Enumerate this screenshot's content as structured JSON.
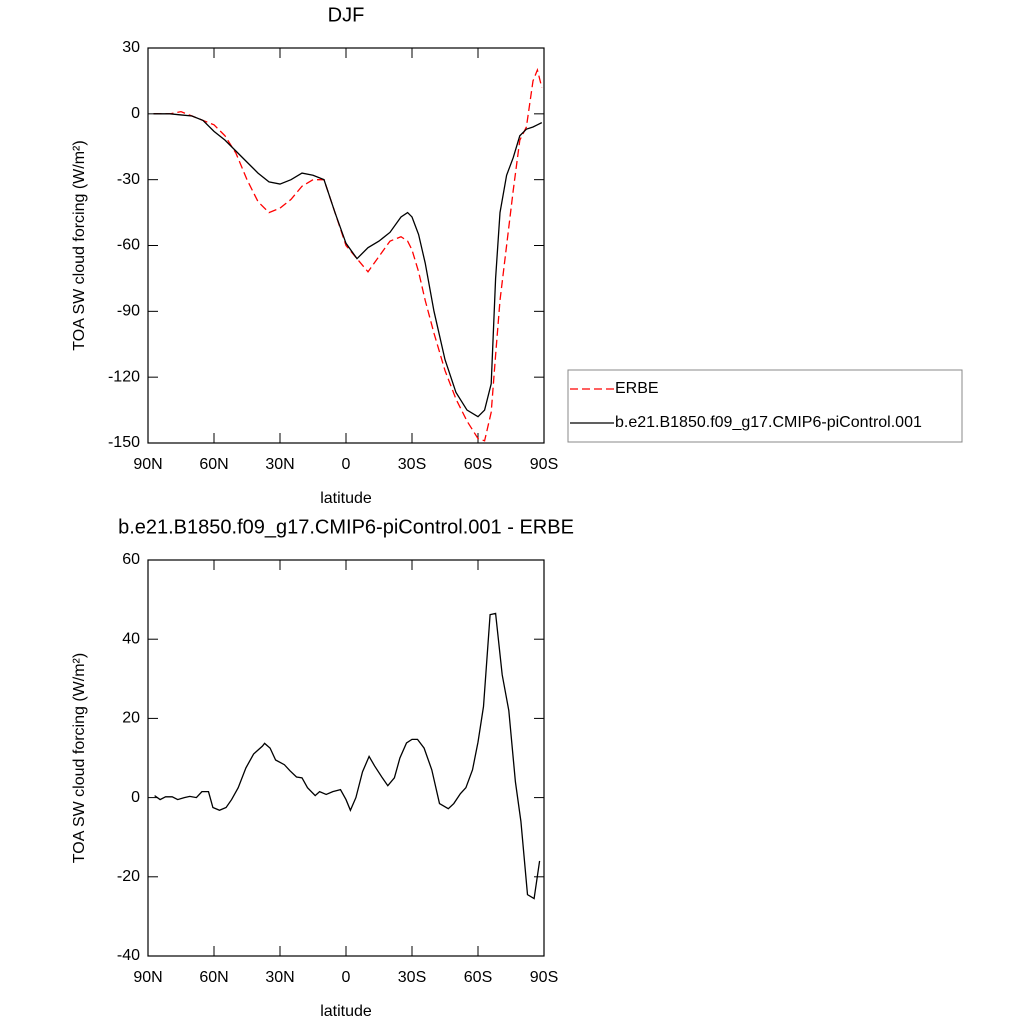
{
  "chart_data": [
    {
      "type": "line",
      "title": "DJF",
      "xlabel": "latitude",
      "ylabel": "TOA SW cloud forcing (W/m²)",
      "x": [
        87.5,
        80,
        75,
        70,
        65,
        60,
        55,
        50,
        45,
        40,
        35,
        30,
        25,
        20,
        15,
        10,
        5,
        0,
        -5,
        -10,
        -15,
        -20,
        -25,
        -28,
        -30,
        -33,
        -36,
        -40,
        -45,
        -50,
        -55,
        -60,
        -63,
        -66,
        -68,
        -70,
        -73,
        -76,
        -79,
        -82,
        -85,
        -87,
        -89
      ],
      "series": [
        {
          "name": "ERBE",
          "color": "#ff0000",
          "dash": "dashed",
          "values": [
            0,
            0,
            1,
            -1,
            -3,
            -5,
            -10,
            -18,
            -30,
            -40,
            -45,
            -43,
            -39,
            -33,
            -30,
            -30,
            -45,
            -60,
            -66,
            -72,
            -65,
            -58,
            -56,
            -58,
            -62,
            -72,
            -85,
            -100,
            -117,
            -130,
            -140,
            -148,
            -149,
            -136,
            -110,
            -85,
            -60,
            -35,
            -12,
            -6,
            15,
            20,
            12
          ]
        },
        {
          "name": "b.e21.B1850.f09_g17.CMIP6-piControl.001",
          "color": "#000000",
          "dash": "solid",
          "values": [
            0,
            0,
            -0.5,
            -1,
            -3,
            -8,
            -12,
            -17,
            -22,
            -27,
            -31,
            -32,
            -30,
            -27,
            -28,
            -30,
            -45,
            -59,
            -66,
            -61,
            -58,
            -54,
            -47,
            -45,
            -47,
            -55,
            -68,
            -90,
            -112,
            -127,
            -135,
            -138,
            -135,
            -123,
            -75,
            -45,
            -28,
            -20,
            -10,
            -7,
            -6,
            -5,
            -4
          ]
        }
      ],
      "xlim": [
        90,
        -90
      ],
      "xticks": [
        {
          "value": 90,
          "label": "90N"
        },
        {
          "value": 60,
          "label": "60N"
        },
        {
          "value": 30,
          "label": "30N"
        },
        0,
        {
          "value": -30,
          "label": "30S"
        },
        {
          "value": -60,
          "label": "60S"
        },
        {
          "value": -90,
          "label": "90S"
        }
      ],
      "ylim": [
        -150,
        30
      ],
      "yticks": [
        -150,
        -120,
        -90,
        -60,
        -30,
        0,
        30
      ],
      "legend": "right"
    },
    {
      "type": "line",
      "title": "b.e21.B1850.f09_g17.CMIP6-piControl.001 - ERBE",
      "xlabel": "latitude",
      "ylabel": "TOA SW cloud forcing (W/m²)",
      "x": [
        87,
        84.5,
        82,
        79,
        76.5,
        73.5,
        71,
        68,
        65.5,
        62.5,
        60.5,
        57.5,
        54.5,
        52,
        49,
        45.5,
        42,
        38,
        37,
        34.5,
        32,
        28,
        25.5,
        22.5,
        20,
        17.5,
        14,
        12,
        9,
        6,
        2.5,
        0,
        -2,
        -4.5,
        -7.5,
        -10.5,
        -13,
        -16.5,
        -19,
        -22,
        -24.5,
        -27.5,
        -30,
        -32.5,
        -35.5,
        -39,
        -42.5,
        -46.5,
        -49,
        -52,
        -54.5,
        -57.5,
        -60,
        -62.5,
        -65.5,
        -68,
        -71,
        -74,
        -77,
        -79.5,
        -82.5,
        -85.5,
        -88
      ],
      "series": [
        {
          "name": "b.e21.B1850.f09_g17.CMIP6-piControl.001 - ERBE",
          "color": "#000000",
          "dash": "solid",
          "values": [
            0.5,
            -0.5,
            0.2,
            0.2,
            -0.5,
            0,
            0.3,
            0,
            1.5,
            1.5,
            -2.5,
            -3.2,
            -2.5,
            -0.5,
            2.5,
            7.5,
            11,
            13,
            13.7,
            12.5,
            9.5,
            8.3,
            6.8,
            5.2,
            5,
            2.5,
            0.5,
            1.5,
            0.8,
            1.5,
            2,
            -0.5,
            -3.2,
            0,
            6.5,
            10.4,
            8,
            5,
            3,
            5,
            10,
            13.8,
            14.7,
            14.7,
            12.5,
            7,
            -1.5,
            -2.8,
            -1.5,
            1,
            2.5,
            7,
            14,
            23,
            46.2,
            46.5,
            31,
            22,
            4,
            -6,
            -24.5,
            -25.5,
            -16
          ]
        }
      ],
      "xlim": [
        90,
        -90
      ],
      "xticks": [
        {
          "value": 90,
          "label": "90N"
        },
        {
          "value": 60,
          "label": "60N"
        },
        {
          "value": 30,
          "label": "30N"
        },
        0,
        {
          "value": -30,
          "label": "30S"
        },
        {
          "value": -60,
          "label": "60S"
        },
        {
          "value": -90,
          "label": "90S"
        }
      ],
      "ylim": [
        -40,
        60
      ],
      "yticks": [
        -40,
        -20,
        0,
        20,
        40,
        60
      ]
    }
  ]
}
